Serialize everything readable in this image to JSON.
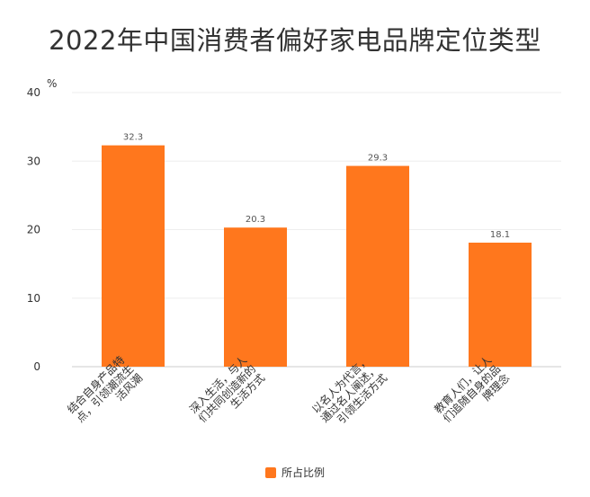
{
  "chart_data": {
    "type": "bar",
    "title": "2022年中国消费者偏好家电品牌定位类型",
    "ylabel": "%",
    "xlabel": "",
    "ylim": [
      0,
      40
    ],
    "yticks": [
      0,
      10,
      20,
      30,
      40
    ],
    "grid": true,
    "legend_position": "bottom",
    "categories": [
      [
        "结合自身产品特",
        "点，引领潮流生",
        "活风潮"
      ],
      [
        "深入生活，与人",
        "们共同创造新的",
        "生活方式"
      ],
      [
        "以名人为代言，",
        "通过名人阐述，",
        "引领生活方式"
      ],
      [
        "教育人们，让人",
        "们追随自身的品",
        "牌理念"
      ]
    ],
    "series": [
      {
        "name": "所占比例",
        "values": [
          32.3,
          20.3,
          29.3,
          18.1
        ],
        "labels": [
          "32.3",
          "20.3",
          "29.3",
          "18.1"
        ]
      }
    ],
    "colors": {
      "bar": "#FF771D",
      "grid": "#EEEEEE",
      "axis": "#CCCCCC"
    }
  }
}
